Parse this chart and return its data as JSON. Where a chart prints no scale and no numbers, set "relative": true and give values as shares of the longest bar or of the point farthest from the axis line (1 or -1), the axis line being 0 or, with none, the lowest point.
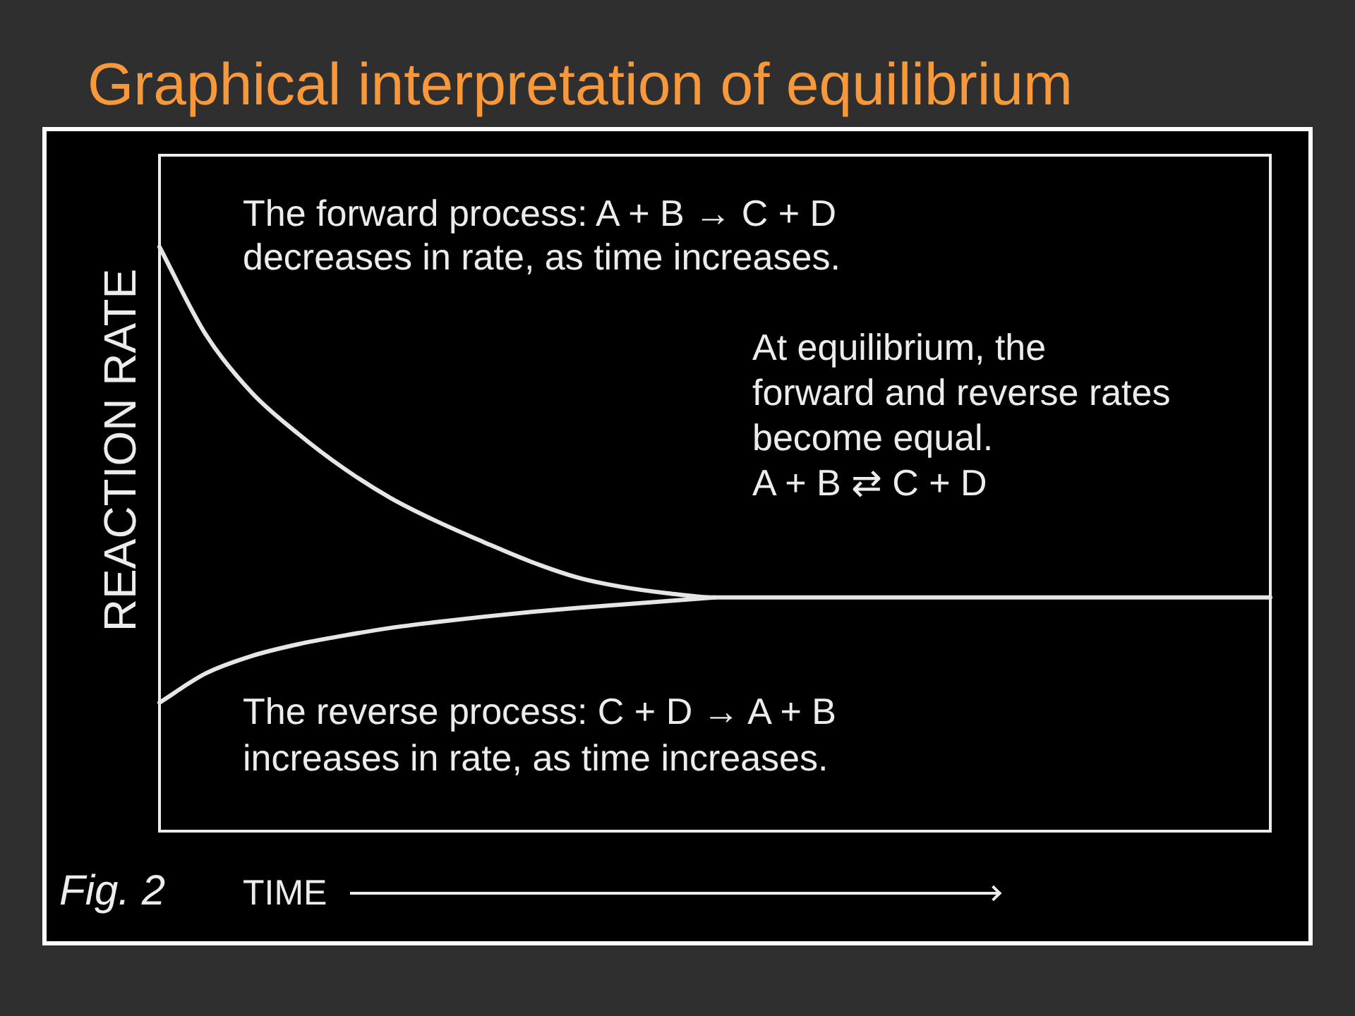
{
  "chart_data": {
    "type": "line",
    "title": "Graphical interpretation of equilibrium",
    "xlabel": "TIME",
    "ylabel": "REACTION RATE",
    "relative": true,
    "categories": [
      null,
      null,
      null,
      null,
      null,
      null,
      null,
      null,
      null,
      null,
      null,
      null,
      null,
      null,
      null,
      null,
      null,
      null,
      null,
      null,
      null,
      null,
      null,
      null,
      null
    ],
    "series": [
      {
        "color": "#e6e6e6",
        "values": [
          1.0,
          0.85,
          0.75,
          0.68,
          0.62,
          0.57,
          0.53,
          0.495,
          0.462,
          0.435,
          0.418,
          0.407,
          0.4,
          0.4,
          0.4,
          0.4,
          0.4,
          0.4,
          0.4,
          0.4,
          0.4,
          0.4,
          0.4,
          0.4,
          0.4
        ]
      },
      {
        "color": "#e6e6e6",
        "values": [
          0.22,
          0.27,
          0.3,
          0.32,
          0.335,
          0.348,
          0.358,
          0.367,
          0.375,
          0.382,
          0.388,
          0.394,
          0.4,
          null,
          null,
          null,
          null,
          null,
          null,
          null,
          null,
          null,
          null,
          null,
          null
        ]
      }
    ],
    "marker": "none",
    "line_style": "solid",
    "annotations": [
      "The forward process: A + B → C + D\ndecreases in rate, as time increases.",
      "At equilibrium, the\nforward and reverse rates\nbecome equal.\nA + B ⇄ C + D",
      "The reverse process: C + D → A + B\nincreases in rate, as time increases.",
      "Fig. 2"
    ]
  }
}
